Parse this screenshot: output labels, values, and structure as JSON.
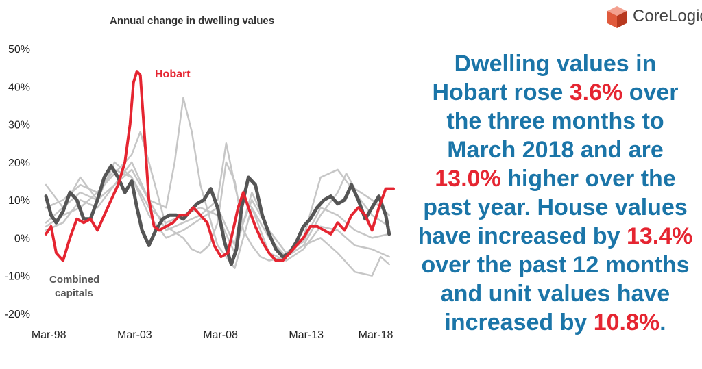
{
  "chart_data": {
    "type": "line",
    "title": "Annual change in dwelling values",
    "ylim": [
      -20,
      50
    ],
    "yticks": [
      "50%",
      "40%",
      "30%",
      "20%",
      "10%",
      "0%",
      "-10%",
      "-20%"
    ],
    "xticks": [
      "Mar-98",
      "Mar-03",
      "Mar-08",
      "Mar-13",
      "Mar-18"
    ],
    "xlim": [
      1998.0,
      2018.25
    ],
    "grid": false,
    "annotations": [
      {
        "text": "Hobart",
        "color": "#e52531"
      },
      {
        "text": "Combined",
        "color": "#555555"
      },
      {
        "text": "capitals",
        "color": "#555555"
      }
    ],
    "series": [
      {
        "name": "Hobart",
        "color": "#e52531",
        "width": 4,
        "x": [
          1998.0,
          1998.3,
          1998.6,
          1999.0,
          1999.4,
          1999.8,
          2000.2,
          2000.6,
          2001.0,
          2001.4,
          2001.8,
          2002.2,
          2002.6,
          2002.9,
          2003.1,
          2003.3,
          2003.5,
          2003.7,
          2004.0,
          2004.3,
          2004.6,
          2005.0,
          2005.4,
          2005.8,
          2006.2,
          2006.6,
          2007.0,
          2007.4,
          2007.8,
          2008.2,
          2008.6,
          2008.9,
          2009.2,
          2009.5,
          2009.8,
          2010.2,
          2010.6,
          2011.0,
          2011.4,
          2011.8,
          2012.2,
          2012.6,
          2013.0,
          2013.4,
          2013.8,
          2014.2,
          2014.6,
          2015.0,
          2015.4,
          2015.8,
          2016.2,
          2016.6,
          2017.0,
          2017.4,
          2017.8,
          2018.0,
          2018.25
        ],
        "y": [
          1,
          3,
          -4,
          -6,
          0,
          5,
          4,
          5,
          2,
          6,
          10,
          14,
          20,
          30,
          41,
          44,
          43,
          30,
          10,
          3,
          2,
          3,
          4,
          6,
          6,
          8,
          6,
          4,
          -2,
          -5,
          -4,
          2,
          8,
          12,
          8,
          3,
          -1,
          -4,
          -6,
          -6,
          -4,
          -2,
          0,
          3,
          3,
          2,
          1,
          4,
          2,
          6,
          8,
          6,
          2,
          8,
          13,
          13,
          13
        ]
      },
      {
        "name": "Combined capitals",
        "color": "#555555",
        "width": 5,
        "x": [
          1998.0,
          1998.3,
          1998.6,
          1999.0,
          1999.4,
          1999.8,
          2000.2,
          2000.6,
          2001.0,
          2001.4,
          2001.8,
          2002.2,
          2002.6,
          2003.0,
          2003.3,
          2003.6,
          2004.0,
          2004.4,
          2004.8,
          2005.2,
          2005.6,
          2006.0,
          2006.4,
          2006.8,
          2007.2,
          2007.6,
          2008.0,
          2008.4,
          2008.8,
          2009.1,
          2009.4,
          2009.8,
          2010.2,
          2010.6,
          2011.0,
          2011.4,
          2011.8,
          2012.2,
          2012.6,
          2013.0,
          2013.4,
          2013.8,
          2014.2,
          2014.6,
          2015.0,
          2015.4,
          2015.8,
          2016.2,
          2016.6,
          2017.0,
          2017.4,
          2017.8,
          2018.0
        ],
        "y": [
          11,
          6,
          4,
          7,
          12,
          10,
          5,
          5,
          10,
          16,
          19,
          16,
          12,
          15,
          8,
          2,
          -2,
          2,
          5,
          6,
          6,
          5,
          7,
          9,
          10,
          13,
          8,
          -1,
          -7,
          -3,
          8,
          16,
          14,
          6,
          1,
          -3,
          -5,
          -4,
          -1,
          3,
          5,
          8,
          10,
          11,
          9,
          10,
          14,
          10,
          5,
          8,
          11,
          6,
          1
        ]
      },
      {
        "name": "",
        "color": "#c6c6c6",
        "width": 2.5,
        "x": [
          1998.0,
          1999.0,
          2000.0,
          2001.0,
          2002.0,
          2003.0,
          2003.5,
          2004.0,
          2005.0,
          2006.0,
          2006.5,
          2007.0,
          2007.5,
          2008.0,
          2008.5,
          2009.0,
          2009.5,
          2010.0,
          2010.5,
          2011.0,
          2012.0,
          2013.0,
          2014.0,
          2015.0,
          2016.0,
          2017.0,
          2017.5,
          2018.0
        ],
        "y": [
          3,
          6,
          8,
          12,
          17,
          22,
          28,
          20,
          3,
          0,
          -3,
          -4,
          -2,
          4,
          20,
          15,
          2,
          -2,
          -5,
          -6,
          -5,
          -2,
          0,
          -4,
          -9,
          -10,
          -5,
          -7
        ]
      },
      {
        "name": "",
        "color": "#c6c6c6",
        "width": 2.5,
        "x": [
          1998.0,
          1999.0,
          2000.0,
          2001.0,
          2002.0,
          2003.0,
          2004.0,
          2005.0,
          2005.5,
          2006.0,
          2006.5,
          2007.0,
          2007.5,
          2008.0,
          2009.0,
          2010.0,
          2011.0,
          2012.0,
          2013.0,
          2014.0,
          2015.0,
          2016.0,
          2017.0,
          2018.0
        ],
        "y": [
          4,
          8,
          12,
          10,
          14,
          18,
          10,
          8,
          20,
          37,
          28,
          14,
          6,
          -2,
          -8,
          8,
          -4,
          -6,
          -3,
          3,
          2,
          -2,
          -3,
          -5
        ]
      },
      {
        "name": "",
        "color": "#c6c6c6",
        "width": 2.5,
        "x": [
          1998.0,
          1999.0,
          2000.0,
          2001.0,
          2002.0,
          2003.0,
          2004.0,
          2005.0,
          2006.0,
          2007.0,
          2008.0,
          2009.0,
          2009.5,
          2010.0,
          2011.0,
          2012.0,
          2013.0,
          2014.0,
          2015.0,
          2015.5,
          2016.0,
          2017.0,
          2018.0
        ],
        "y": [
          8,
          10,
          14,
          12,
          18,
          16,
          6,
          0,
          2,
          5,
          8,
          -2,
          10,
          8,
          0,
          -5,
          -2,
          6,
          12,
          17,
          13,
          10,
          6
        ]
      },
      {
        "name": "",
        "color": "#c6c6c6",
        "width": 2.5,
        "x": [
          1998.0,
          1999.0,
          2000.0,
          2001.0,
          2002.0,
          2003.0,
          2004.0,
          2005.0,
          2006.0,
          2007.0,
          2008.0,
          2008.5,
          2009.0,
          2009.5,
          2010.0,
          2011.0,
          2012.0,
          2013.0,
          2014.0,
          2015.0,
          2016.0,
          2017.0,
          2018.0
        ],
        "y": [
          2,
          4,
          10,
          8,
          14,
          20,
          10,
          2,
          4,
          6,
          10,
          25,
          14,
          4,
          10,
          2,
          -4,
          -1,
          8,
          6,
          2,
          0,
          1
        ]
      },
      {
        "name": "",
        "color": "#c6c6c6",
        "width": 2.5,
        "x": [
          1998.0,
          1999.0,
          2000.0,
          2001.0,
          2002.0,
          2003.0,
          2004.0,
          2005.0,
          2006.0,
          2007.0,
          2008.0,
          2009.0,
          2010.0,
          2011.0,
          2012.0,
          2013.0,
          2014.0,
          2015.0,
          2016.0,
          2017.0,
          2018.0
        ],
        "y": [
          14,
          8,
          16,
          10,
          20,
          16,
          8,
          4,
          6,
          8,
          6,
          -4,
          12,
          2,
          -4,
          0,
          16,
          18,
          12,
          6,
          3
        ]
      }
    ]
  },
  "logo": {
    "text": "CoreLogic",
    "tm": "®"
  },
  "headline": {
    "p1": "Dwelling values in Hobart rose ",
    "h1": "3.6%",
    "p2": " over the three months to March 2018 and are ",
    "h2": "13.0%",
    "p3": " higher over the past year. House values have increased by ",
    "h3": "13.4%",
    "p4": " over the past 12 months and unit values have increased by ",
    "h4": "10.8%",
    "p5": "."
  }
}
